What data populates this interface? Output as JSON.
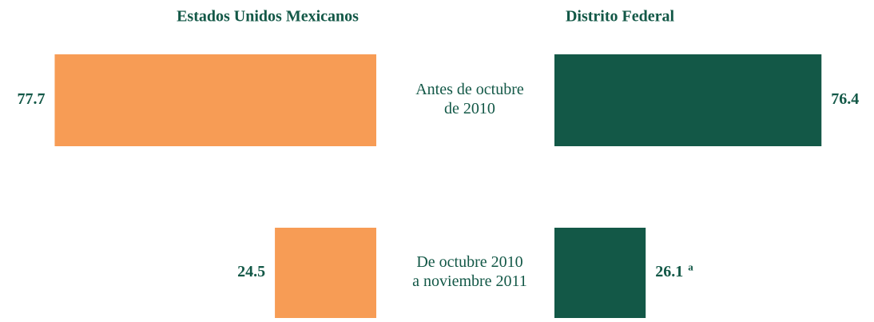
{
  "chart_data": {
    "type": "butterfly",
    "categories": [
      [
        "Antes de octubre",
        "de 2010"
      ],
      [
        "De octubre 2010",
        "a noviembre 2011"
      ]
    ],
    "series": [
      {
        "name": "Estados Unidos Mexicanos",
        "color": "#f79c55",
        "values": [
          77.7,
          24.5
        ],
        "xlim": [
          0,
          83
        ]
      },
      {
        "name": "Distrito Federal",
        "color": "#135847",
        "values": [
          76.4,
          26.1
        ],
        "xlim": [
          0,
          80
        ]
      }
    ],
    "annotations": [
      {
        "text": "a",
        "series": 1,
        "category": 1
      }
    ]
  }
}
